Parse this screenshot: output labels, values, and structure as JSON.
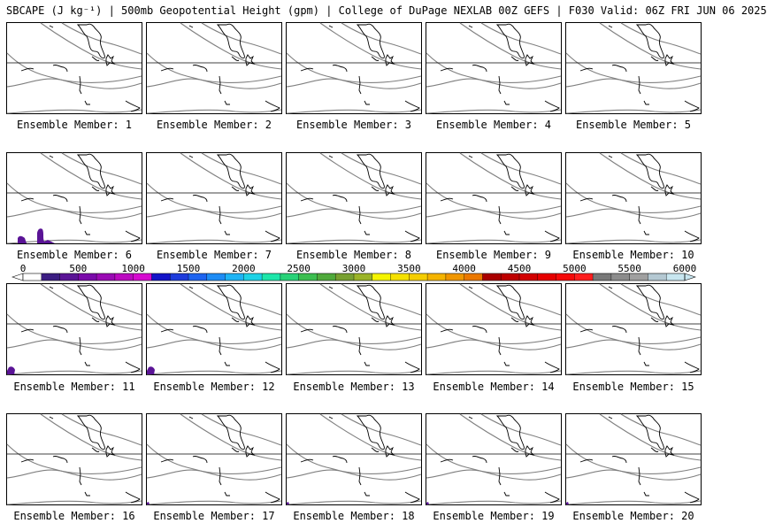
{
  "title": "SBCAPE (J kg⁻¹) | 500mb Geopotential Height (gpm) | College of DuPage NEXLAB 00Z GEFS | F030 Valid: 06Z FRI JUN 06 2025",
  "member_label_prefix": "Ensemble Member: ",
  "members": [
    {
      "label": "Ensemble Member: 1",
      "cape_blob": false
    },
    {
      "label": "Ensemble Member: 2",
      "cape_blob": false
    },
    {
      "label": "Ensemble Member: 3",
      "cape_blob": false
    },
    {
      "label": "Ensemble Member: 4",
      "cape_blob": false
    },
    {
      "label": "Ensemble Member: 5",
      "cape_blob": false
    },
    {
      "label": "Ensemble Member: 6",
      "cape_blob": "large"
    },
    {
      "label": "Ensemble Member: 7",
      "cape_blob": false
    },
    {
      "label": "Ensemble Member: 8",
      "cape_blob": false
    },
    {
      "label": "Ensemble Member: 9",
      "cape_blob": false
    },
    {
      "label": "Ensemble Member: 10",
      "cape_blob": false
    },
    {
      "label": "Ensemble Member: 11",
      "cape_blob": "small"
    },
    {
      "label": "Ensemble Member: 12",
      "cape_blob": "small"
    },
    {
      "label": "Ensemble Member: 13",
      "cape_blob": false
    },
    {
      "label": "Ensemble Member: 14",
      "cape_blob": false
    },
    {
      "label": "Ensemble Member: 15",
      "cape_blob": false
    },
    {
      "label": "Ensemble Member: 16",
      "cape_blob": false
    },
    {
      "label": "Ensemble Member: 17",
      "cape_blob": "tiny"
    },
    {
      "label": "Ensemble Member: 18",
      "cape_blob": "tiny"
    },
    {
      "label": "Ensemble Member: 19",
      "cape_blob": "tiny"
    },
    {
      "label": "Ensemble Member: 20",
      "cape_blob": "tiny"
    }
  ],
  "colorbar": {
    "min": 0,
    "max": 6000,
    "tick_labels": [
      "0",
      "500",
      "1000",
      "1500",
      "2000",
      "2500",
      "3000",
      "3500",
      "4000",
      "4500",
      "5000",
      "5500",
      "6000"
    ],
    "colors": [
      "#ffffff",
      "#3c1e82",
      "#5a1496",
      "#7a0aaa",
      "#9a0ab4",
      "#bb0ac0",
      "#d60ad0",
      "#1414c8",
      "#1e3cdc",
      "#1e64f0",
      "#1e8cf5",
      "#1eb4f5",
      "#1ed2e6",
      "#1ee6aa",
      "#28d278",
      "#3cbe50",
      "#50aa3c",
      "#78a032",
      "#9bb428",
      "#f5f500",
      "#f5e100",
      "#f5cd00",
      "#f5b400",
      "#f09600",
      "#eb7800",
      "#aa0000",
      "#be0000",
      "#d20000",
      "#e60000",
      "#f50a0a",
      "#ff1e1e",
      "#787878",
      "#8c8c8c",
      "#a0a0a0",
      "#b4c8d2",
      "#c8e6f0"
    ],
    "cape_fill_color": "#5a1496"
  }
}
